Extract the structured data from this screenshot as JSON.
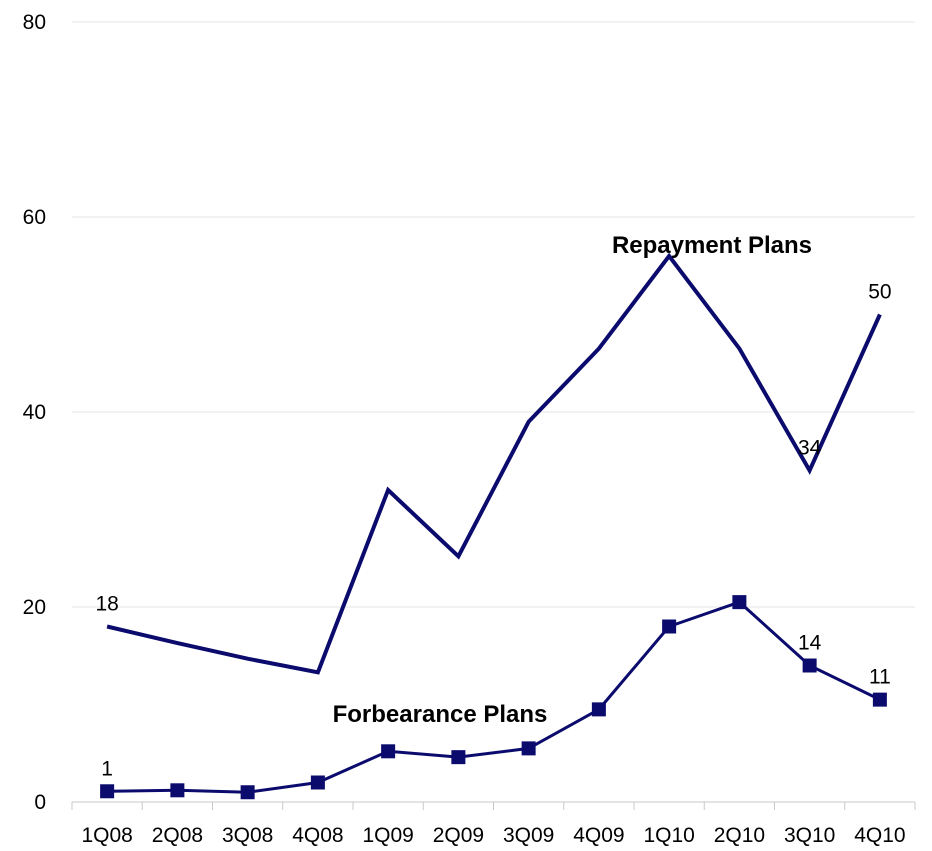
{
  "chart_data": {
    "type": "line",
    "title": "",
    "xlabel": "",
    "ylabel": "",
    "categories": [
      "1Q08",
      "2Q08",
      "3Q08",
      "4Q08",
      "1Q09",
      "2Q09",
      "3Q09",
      "4Q09",
      "1Q10",
      "2Q10",
      "3Q10",
      "4Q10"
    ],
    "ylim": [
      0,
      80
    ],
    "yticks": [
      0,
      20,
      40,
      60,
      80
    ],
    "grid": true,
    "legend": "none",
    "series": [
      {
        "name": "Repayment  Plans",
        "values": [
          18,
          16.3,
          14.7,
          13.3,
          32,
          25.2,
          39,
          46.5,
          56,
          46.5,
          34,
          50
        ],
        "color": "#0B0B6E",
        "marker": "none"
      },
      {
        "name": "Forbearance Plans",
        "values": [
          1.1,
          1.2,
          1.0,
          2.0,
          5.2,
          4.6,
          5.5,
          9.5,
          18,
          20.5,
          14,
          10.5
        ],
        "color": "#0B0B6E",
        "marker": "square"
      }
    ],
    "annotations": [
      {
        "series": 0,
        "index": 0,
        "text": "18"
      },
      {
        "series": 0,
        "index": 10,
        "text": "34"
      },
      {
        "series": 0,
        "index": 11,
        "text": "50"
      },
      {
        "series": 1,
        "index": 0,
        "text": "1"
      },
      {
        "series": 1,
        "index": 10,
        "text": "14"
      },
      {
        "series": 1,
        "index": 11,
        "text": "11"
      }
    ]
  }
}
